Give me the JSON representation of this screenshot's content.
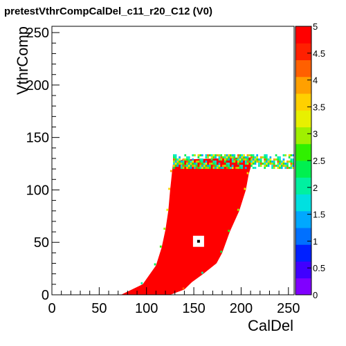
{
  "chart_data": {
    "type": "heatmap",
    "title": "pretestVthrCompCalDel_c11_r20_C12 (V0)",
    "xlabel": "CalDel",
    "ylabel": "VthrComp",
    "xlim": [
      0,
      256
    ],
    "ylim": [
      0,
      256
    ],
    "zlim": [
      0,
      5
    ],
    "x_ticks": [
      0,
      50,
      100,
      150,
      200,
      250
    ],
    "x_tick_labels": [
      "0",
      "50",
      "100",
      "150",
      "200",
      "250"
    ],
    "y_ticks": [
      0,
      50,
      100,
      150,
      200,
      250
    ],
    "y_tick_labels": [
      "0",
      "50",
      "100",
      "150",
      "200",
      "250"
    ],
    "z_ticks": [
      0,
      0.5,
      1,
      1.5,
      2,
      2.5,
      3,
      3.5,
      4,
      4.5,
      5
    ],
    "z_tick_labels": [
      "0",
      "0.5",
      "1",
      "1.5",
      "2",
      "2.5",
      "3",
      "3.5",
      "4",
      "4.5",
      "5"
    ],
    "palette": [
      "#8000ff",
      "#4000ff",
      "#0020ff",
      "#0070ff",
      "#00a8ff",
      "#00e0e0",
      "#00f0a0",
      "#00f050",
      "#30f000",
      "#a0f000",
      "#e8f000",
      "#ffd000",
      "#ffa000",
      "#ff6000",
      "#ff2000",
      "#ff0000"
    ],
    "filled_region": {
      "value": 5,
      "boundary_polygon": [
        [
          73,
          0
        ],
        [
          96,
          10
        ],
        [
          110,
          28
        ],
        [
          116,
          45
        ],
        [
          120,
          62
        ],
        [
          123,
          80
        ],
        [
          125,
          100
        ],
        [
          127,
          117
        ],
        [
          128,
          125
        ],
        [
          138,
          129
        ],
        [
          175,
          130
        ],
        [
          200,
          131
        ],
        [
          210,
          131
        ],
        [
          212,
          127
        ],
        [
          208,
          115
        ],
        [
          205,
          100
        ],
        [
          198,
          80
        ],
        [
          188,
          60
        ],
        [
          180,
          40
        ],
        [
          174,
          30
        ],
        [
          160,
          20
        ],
        [
          148,
          12
        ],
        [
          140,
          5
        ],
        [
          125,
          0
        ]
      ]
    },
    "fringe_band": {
      "y_range": [
        120,
        134
      ],
      "x_range": [
        128,
        256
      ]
    },
    "marker": {
      "x": 155,
      "y": 51
    }
  }
}
